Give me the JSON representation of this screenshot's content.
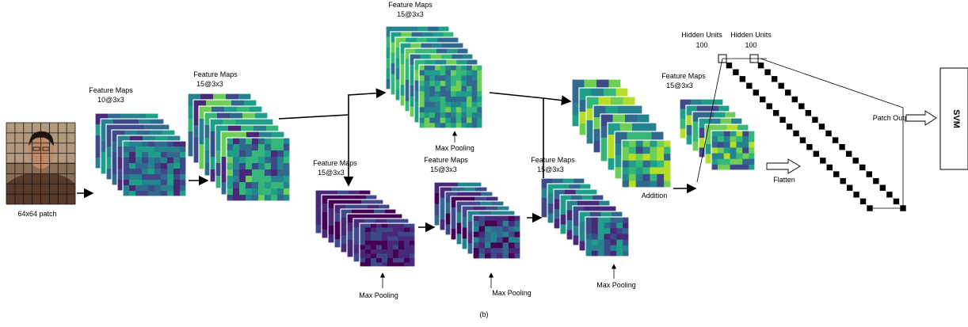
{
  "input": {
    "label": "64x64 patch"
  },
  "layers": [
    {
      "title": "Feature Maps",
      "size": "10@3x3"
    },
    {
      "title": "Feature Maps",
      "size": "15@3x3"
    },
    {
      "title": "Feature Maps",
      "size": "15@3x3"
    },
    {
      "title": "Feature Maps",
      "size": "15@3x3"
    },
    {
      "title": "Feature Maps",
      "size": "15@3x3"
    },
    {
      "title": "Feature Maps",
      "size": "15@3x3"
    },
    {
      "title": "Feature Maps",
      "size": "15@3x3"
    }
  ],
  "pooling": [
    "Max Pooling",
    "Max Pooling",
    "Max Pooling",
    "Max Pooling"
  ],
  "addition": "Addition",
  "flatten": "Flatten",
  "hidden": [
    {
      "title": "Hidden Units",
      "size": "100"
    },
    {
      "title": "Hidden Units",
      "size": "100"
    }
  ],
  "patch_output": "Patch Output",
  "classifier": "SVM",
  "caption": "(b)"
}
